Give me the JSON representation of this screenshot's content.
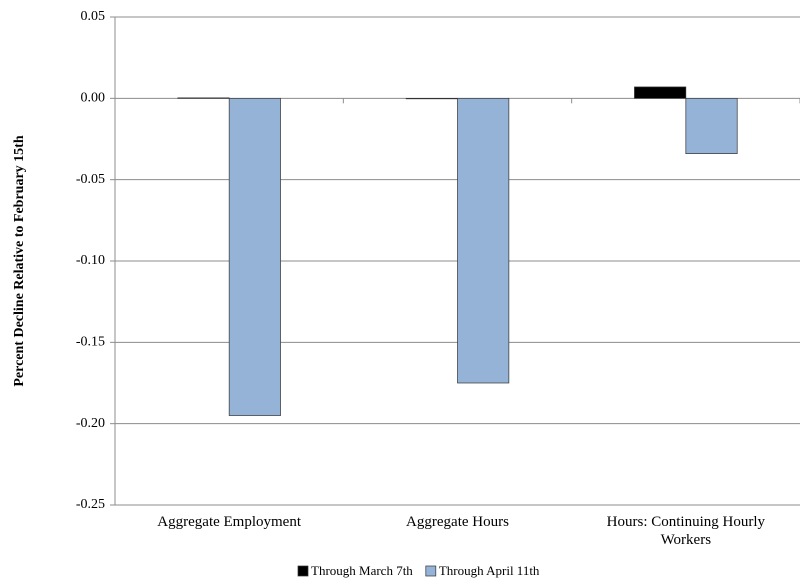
{
  "chart_data": {
    "type": "bar",
    "y_label": "Percent Decline Relative to February 15th",
    "categories": [
      "Aggregate Employment",
      "Aggregate Hours",
      "Hours: Continuing Hourly Workers"
    ],
    "series": [
      {
        "name": "Through March 7th",
        "color": "#000000",
        "values": [
          0.0003,
          -0.0003,
          0.007
        ]
      },
      {
        "name": "Through April 11th",
        "color": "#95b3d7",
        "values": [
          -0.195,
          -0.175,
          -0.034
        ]
      }
    ],
    "ylim": [
      -0.25,
      0.05
    ],
    "yticks": [
      -0.25,
      {
        "value": -0.2,
        "label": "-0.20"
      },
      -0.15,
      {
        "value": -0.1,
        "label": "-0.10"
      },
      -0.05,
      {
        "value": 0,
        "label": "0.00"
      },
      0.05
    ],
    "grid": true,
    "legend": "bottom"
  }
}
